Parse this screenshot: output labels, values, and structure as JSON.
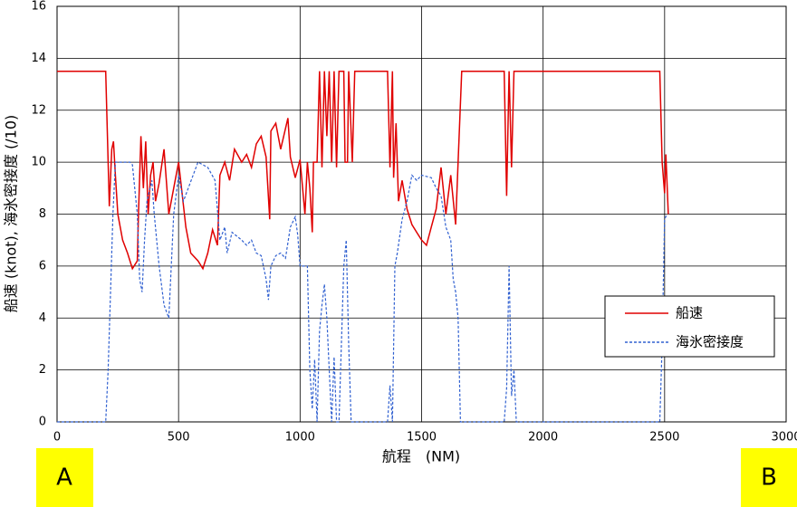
{
  "chart_data": {
    "type": "line",
    "xlabel": "航程　(NM)",
    "ylabel": "船速 (knot), 海氷密接度 (/10)",
    "annotations": [
      "A",
      "B"
    ],
    "xlim": [
      0,
      3000
    ],
    "xticks": [
      0,
      500,
      1000,
      1500,
      2000,
      2500,
      3000
    ],
    "ylim": [
      0,
      16
    ],
    "yticks": [
      0,
      2,
      4,
      6,
      8,
      10,
      12,
      14,
      16
    ],
    "grid": true,
    "legend": "lower right",
    "series": [
      {
        "name": "船速",
        "color": "#e00000",
        "dash": false,
        "x": [
          0,
          200,
          215,
          225,
          232,
          240,
          250,
          270,
          290,
          300,
          310,
          330,
          335,
          345,
          355,
          365,
          375,
          385,
          395,
          405,
          420,
          440,
          460,
          480,
          500,
          530,
          550,
          580,
          600,
          620,
          640,
          660,
          670,
          690,
          710,
          730,
          760,
          780,
          800,
          820,
          840,
          860,
          875,
          880,
          900,
          920,
          950,
          960,
          980,
          1000,
          1020,
          1030,
          1040,
          1050,
          1055,
          1070,
          1080,
          1090,
          1100,
          1110,
          1120,
          1130,
          1140,
          1150,
          1160,
          1180,
          1185,
          1195,
          1200,
          1215,
          1225,
          1360,
          1370,
          1380,
          1385,
          1395,
          1405,
          1420,
          1440,
          1460,
          1480,
          1500,
          1520,
          1540,
          1560,
          1580,
          1600,
          1620,
          1640,
          1650,
          1665,
          1840,
          1850,
          1860,
          1870,
          1880,
          2480,
          2490,
          2500,
          2505,
          2515
        ],
        "values": [
          13.5,
          13.5,
          8.3,
          10.5,
          10.8,
          9.5,
          8,
          7,
          6.5,
          6.2,
          5.9,
          6.2,
          8,
          11,
          9,
          10.8,
          8,
          9.5,
          10,
          8.5,
          9.2,
          10.5,
          8,
          9,
          10,
          7.5,
          6.5,
          6.2,
          5.9,
          6.5,
          7.4,
          6.8,
          9.5,
          10,
          9.3,
          10.5,
          10,
          10.3,
          9.8,
          10.7,
          11,
          10.2,
          7.8,
          11.2,
          11.5,
          10.5,
          11.7,
          10.2,
          9.4,
          10.1,
          8,
          10,
          9,
          7.3,
          10,
          10,
          13.5,
          9.8,
          13.5,
          11,
          13.5,
          10,
          13.5,
          9.8,
          13.5,
          13.5,
          10,
          10,
          13.5,
          10,
          13.5,
          13.5,
          9.8,
          13.5,
          9.4,
          11.5,
          8.5,
          9.3,
          8.2,
          7.6,
          7.3,
          7,
          6.8,
          7.5,
          8.2,
          9.8,
          8,
          9.5,
          7.6,
          10,
          13.5,
          13.5,
          8.7,
          13.5,
          9.8,
          13.5,
          13.5,
          10,
          8.8,
          10.3,
          8
        ]
      },
      {
        "name": "海氷密接度",
        "color": "#3060d0",
        "dash": true,
        "x": [
          0,
          200,
          210,
          230,
          240,
          300,
          310,
          330,
          340,
          350,
          360,
          370,
          390,
          400,
          420,
          440,
          460,
          480,
          500,
          520,
          540,
          580,
          620,
          650,
          670,
          690,
          700,
          720,
          760,
          780,
          800,
          820,
          840,
          860,
          870,
          880,
          900,
          920,
          940,
          960,
          980,
          990,
          1000,
          1020,
          1030,
          1040,
          1050,
          1060,
          1070,
          1080,
          1090,
          1100,
          1110,
          1120,
          1130,
          1140,
          1150,
          1160,
          1180,
          1190,
          1200,
          1210,
          1360,
          1370,
          1380,
          1390,
          1400,
          1420,
          1440,
          1460,
          1480,
          1500,
          1540,
          1560,
          1580,
          1600,
          1620,
          1630,
          1640,
          1650,
          1660,
          1840,
          1850,
          1860,
          1870,
          1880,
          1890,
          2480,
          2490,
          2500,
          2510
        ],
        "values": [
          0,
          0,
          2,
          8,
          10,
          10,
          9.9,
          8,
          5.5,
          5,
          7,
          8.5,
          9.3,
          8,
          6,
          4.5,
          4,
          8,
          9.5,
          8.5,
          9,
          10,
          9.8,
          9.3,
          7,
          7.5,
          6.5,
          7.3,
          7,
          6.8,
          7,
          6.5,
          6.4,
          5.5,
          4.7,
          6,
          6.4,
          6.5,
          6.3,
          7.5,
          7.9,
          7.2,
          6,
          6,
          6,
          2,
          0.5,
          2.4,
          0,
          3.5,
          4.5,
          5.3,
          4,
          2,
          0,
          2.5,
          0,
          0,
          6,
          7,
          3,
          0,
          0,
          1.4,
          0,
          6,
          6.5,
          7.8,
          8.5,
          9.5,
          9.3,
          9.5,
          9.4,
          9,
          8.7,
          7.5,
          7,
          5.5,
          5,
          4,
          0,
          0,
          1.3,
          6,
          1,
          2,
          0,
          0,
          3,
          7.8,
          8
        ]
      }
    ]
  }
}
